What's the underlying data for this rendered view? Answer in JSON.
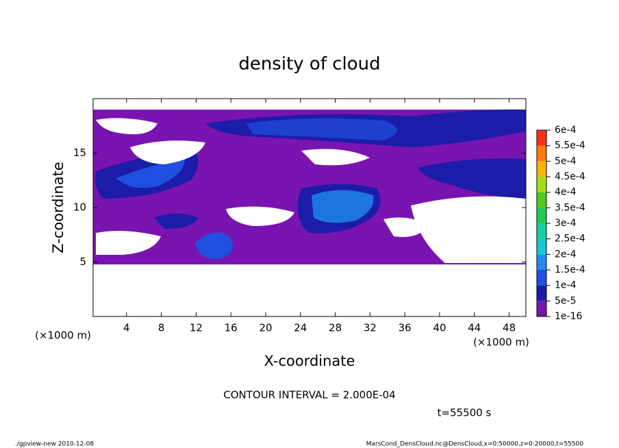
{
  "chart_data": {
    "type": "contour",
    "title": "density of cloud",
    "x_label": "X-coordinate",
    "y_label": "Z-coordinate",
    "x_unit": "(×1000 m)",
    "xlim": [
      0,
      50
    ],
    "xticks": [
      4,
      8,
      12,
      16,
      20,
      24,
      28,
      32,
      36,
      40,
      44,
      48
    ],
    "ylim": [
      0,
      20
    ],
    "yticks": [
      5,
      10,
      15
    ],
    "colorbar": {
      "levels": [
        1e-16,
        {
          "value": 5e-05,
          "label": "5e-5"
        },
        {
          "value": 0.0001,
          "label": "1e-4"
        },
        {
          "value": 0.00015,
          "label": "1.5e-4"
        },
        {
          "value": 0.0002,
          "label": "2e-4"
        },
        {
          "value": 0.00025,
          "label": "2.5e-4"
        },
        {
          "value": 0.0003,
          "label": "3e-4"
        },
        {
          "value": 0.00035,
          "label": "3.5e-4"
        },
        {
          "value": 0.0004,
          "label": "4e-4"
        },
        {
          "value": 0.00045,
          "label": "4.5e-4"
        },
        {
          "value": 0.0005,
          "label": "5e-4"
        },
        {
          "value": 0.00055,
          "label": "5.5e-4"
        },
        {
          "value": 0.0006,
          "label": "6e-4"
        }
      ],
      "colors": [
        "#7a14b0",
        "#1c1ca8",
        "#2050e0",
        "#1e8cf0",
        "#18c8d8",
        "#18d0a0",
        "#20c850",
        "#50cc20",
        "#a8dc18",
        "#ffb400",
        "#ff7a10",
        "#ff3018",
        "#ff8c8c"
      ]
    },
    "annotation": "CONTOUR INTERVAL = 2.000E-04",
    "time_label": "t=55500 s",
    "footer_left": "./gpview-new  2010-12-08",
    "footer_right": "MarsCond_DensCloud.nc@DensCloud,x=0:50000,z=0:20000,t=55500"
  }
}
